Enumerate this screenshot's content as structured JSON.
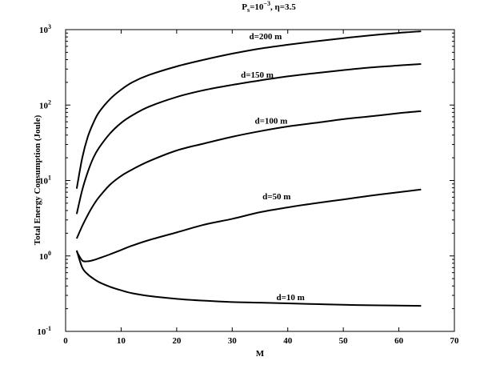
{
  "chart_data": {
    "type": "line",
    "title": {
      "p_main": "P",
      "p_sub": "s",
      "eq_base": "=10",
      "exponent": "−3",
      "tail": ", η=3.5"
    },
    "xlabel": "M",
    "ylabel": "Total Energy Consumption (Joule)",
    "xlim": [
      0,
      70
    ],
    "ylim": [
      0.1,
      1000
    ],
    "yscale": "log",
    "grid": false,
    "x_ticks": [
      0,
      10,
      20,
      30,
      40,
      50,
      60,
      70
    ],
    "y_ticks": [
      {
        "value": 0.1,
        "base": "10",
        "exp": "-1"
      },
      {
        "value": 1,
        "base": "10",
        "exp": "0"
      },
      {
        "value": 10,
        "base": "10",
        "exp": "1"
      },
      {
        "value": 100,
        "base": "10",
        "exp": "2"
      },
      {
        "value": 1000,
        "base": "10",
        "exp": "3"
      }
    ],
    "series": [
      {
        "name": "d=200 m",
        "label_at": [
          36,
          750
        ],
        "x": [
          2,
          3,
          4,
          5,
          6,
          8,
          10,
          12,
          15,
          20,
          25,
          30,
          35,
          40,
          45,
          50,
          55,
          60,
          64
        ],
        "y": [
          7.8,
          20,
          38,
          58,
          80,
          120,
          160,
          200,
          250,
          325,
          400,
          480,
          560,
          630,
          700,
          770,
          840,
          905,
          950
        ]
      },
      {
        "name": "d=150 m",
        "label_at": [
          34.5,
          230
        ],
        "x": [
          2,
          3,
          4,
          5,
          6,
          8,
          10,
          12,
          15,
          20,
          25,
          30,
          35,
          40,
          45,
          50,
          55,
          60,
          64
        ],
        "y": [
          3.6,
          7.5,
          13,
          20,
          27,
          42,
          58,
          73,
          95,
          128,
          158,
          185,
          212,
          240,
          265,
          290,
          315,
          335,
          350
        ]
      },
      {
        "name": "d=100 m",
        "label_at": [
          37,
          57
        ],
        "x": [
          2,
          3,
          4,
          5,
          6,
          8,
          10,
          12,
          15,
          20,
          25,
          30,
          35,
          40,
          45,
          50,
          55,
          60,
          64
        ],
        "y": [
          1.7,
          2.5,
          3.5,
          4.7,
          6,
          8.8,
          11.5,
          14,
          18,
          25,
          31,
          38,
          45,
          52,
          58,
          65,
          71,
          78,
          83
        ]
      },
      {
        "name": "d=50 m",
        "label_at": [
          38,
          5.6
        ],
        "x": [
          2,
          3,
          4,
          5,
          6,
          8,
          10,
          12,
          15,
          20,
          25,
          30,
          35,
          40,
          45,
          50,
          55,
          60,
          64
        ],
        "y": [
          1.15,
          0.87,
          0.85,
          0.88,
          0.93,
          1.05,
          1.2,
          1.37,
          1.62,
          2.05,
          2.6,
          3.1,
          3.8,
          4.4,
          5.0,
          5.6,
          6.3,
          7.0,
          7.6
        ]
      },
      {
        "name": "d=10 m",
        "label_at": [
          40.5,
          0.26
        ],
        "x": [
          2,
          3,
          4,
          5,
          6,
          8,
          10,
          12,
          15,
          20,
          25,
          30,
          35,
          40,
          45,
          50,
          55,
          60,
          64
        ],
        "y": [
          1.18,
          0.7,
          0.57,
          0.5,
          0.45,
          0.39,
          0.35,
          0.32,
          0.295,
          0.27,
          0.255,
          0.245,
          0.24,
          0.235,
          0.23,
          0.225,
          0.222,
          0.22,
          0.218
        ]
      }
    ]
  }
}
